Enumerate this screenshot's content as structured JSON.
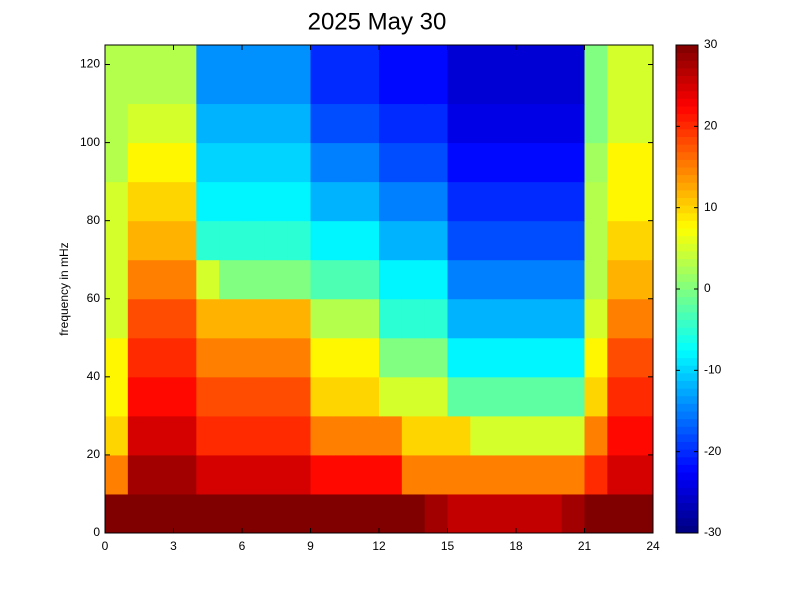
{
  "chart_data": {
    "type": "heatmap",
    "title": "2025 May 30",
    "y_label": "frequency in mHz",
    "colormap": "jet",
    "clim": [
      -30,
      30
    ],
    "cticks": [
      -30,
      -20,
      -10,
      0,
      10,
      20,
      30
    ],
    "xlim": [
      0,
      24
    ],
    "xticks": [
      0,
      3,
      6,
      9,
      12,
      15,
      18,
      21,
      24
    ],
    "ylim": [
      0,
      125
    ],
    "yticks": [
      0,
      20,
      40,
      60,
      80,
      100,
      120
    ],
    "xbins": [
      0,
      1,
      2,
      3,
      4,
      5,
      6,
      7,
      8,
      9,
      10,
      11,
      12,
      13,
      14,
      15,
      16,
      17,
      18,
      19,
      20,
      21,
      22,
      23,
      24
    ],
    "ybins": [
      0,
      10,
      20,
      30,
      40,
      50,
      60,
      70,
      80,
      90,
      100,
      110,
      120,
      125
    ],
    "values": [
      [
        30,
        30,
        30,
        30,
        30,
        30,
        30,
        30,
        30,
        30,
        30,
        30,
        30,
        30,
        28,
        26,
        26,
        26,
        26,
        26,
        28,
        30,
        30,
        30
      ],
      [
        15,
        28,
        28,
        28,
        25,
        25,
        25,
        25,
        25,
        22,
        22,
        22,
        22,
        15,
        15,
        15,
        15,
        15,
        15,
        15,
        15,
        20,
        25,
        25
      ],
      [
        10,
        25,
        25,
        25,
        20,
        20,
        20,
        20,
        20,
        15,
        15,
        15,
        15,
        10,
        10,
        10,
        5,
        5,
        5,
        5,
        5,
        15,
        22,
        22
      ],
      [
        8,
        22,
        22,
        22,
        18,
        18,
        18,
        18,
        18,
        10,
        10,
        10,
        5,
        5,
        5,
        -2,
        -2,
        -2,
        -2,
        -2,
        -2,
        10,
        20,
        20
      ],
      [
        8,
        20,
        20,
        20,
        15,
        15,
        15,
        15,
        15,
        8,
        8,
        8,
        0,
        0,
        0,
        -8,
        -8,
        -8,
        -8,
        -8,
        -8,
        8,
        18,
        18
      ],
      [
        5,
        18,
        18,
        18,
        12,
        12,
        12,
        12,
        12,
        3,
        3,
        3,
        -5,
        -5,
        -5,
        -12,
        -12,
        -12,
        -12,
        -12,
        -12,
        5,
        15,
        15
      ],
      [
        5,
        15,
        15,
        15,
        5,
        0,
        0,
        0,
        0,
        -3,
        -3,
        -3,
        -8,
        -8,
        -8,
        -15,
        -15,
        -15,
        -15,
        -15,
        -15,
        3,
        12,
        12
      ],
      [
        5,
        12,
        12,
        12,
        -5,
        -5,
        -5,
        -5,
        -5,
        -8,
        -8,
        -8,
        -12,
        -12,
        -12,
        -18,
        -18,
        -18,
        -18,
        -18,
        -18,
        3,
        10,
        10
      ],
      [
        5,
        10,
        10,
        10,
        -8,
        -8,
        -8,
        -8,
        -8,
        -12,
        -12,
        -12,
        -15,
        -15,
        -15,
        -20,
        -20,
        -20,
        -20,
        -20,
        -20,
        3,
        8,
        8
      ],
      [
        3,
        8,
        8,
        8,
        -10,
        -10,
        -10,
        -10,
        -10,
        -15,
        -15,
        -15,
        -18,
        -18,
        -18,
        -22,
        -22,
        -22,
        -22,
        -22,
        -22,
        2,
        8,
        8
      ],
      [
        3,
        5,
        5,
        5,
        -12,
        -12,
        -12,
        -12,
        -12,
        -18,
        -18,
        -18,
        -20,
        -20,
        -20,
        -24,
        -24,
        -24,
        -24,
        -24,
        -24,
        0,
        5,
        5
      ],
      [
        3,
        3,
        3,
        3,
        -14,
        -14,
        -14,
        -14,
        -14,
        -20,
        -20,
        -20,
        -22,
        -22,
        -22,
        -25,
        -25,
        -25,
        -25,
        -25,
        -25,
        0,
        5,
        5
      ],
      [
        3,
        3,
        3,
        3,
        -14,
        -14,
        -14,
        -14,
        -14,
        -20,
        -20,
        -20,
        -22,
        -22,
        -22,
        -25,
        -25,
        -25,
        -25,
        -25,
        -25,
        0,
        5,
        5
      ]
    ]
  }
}
